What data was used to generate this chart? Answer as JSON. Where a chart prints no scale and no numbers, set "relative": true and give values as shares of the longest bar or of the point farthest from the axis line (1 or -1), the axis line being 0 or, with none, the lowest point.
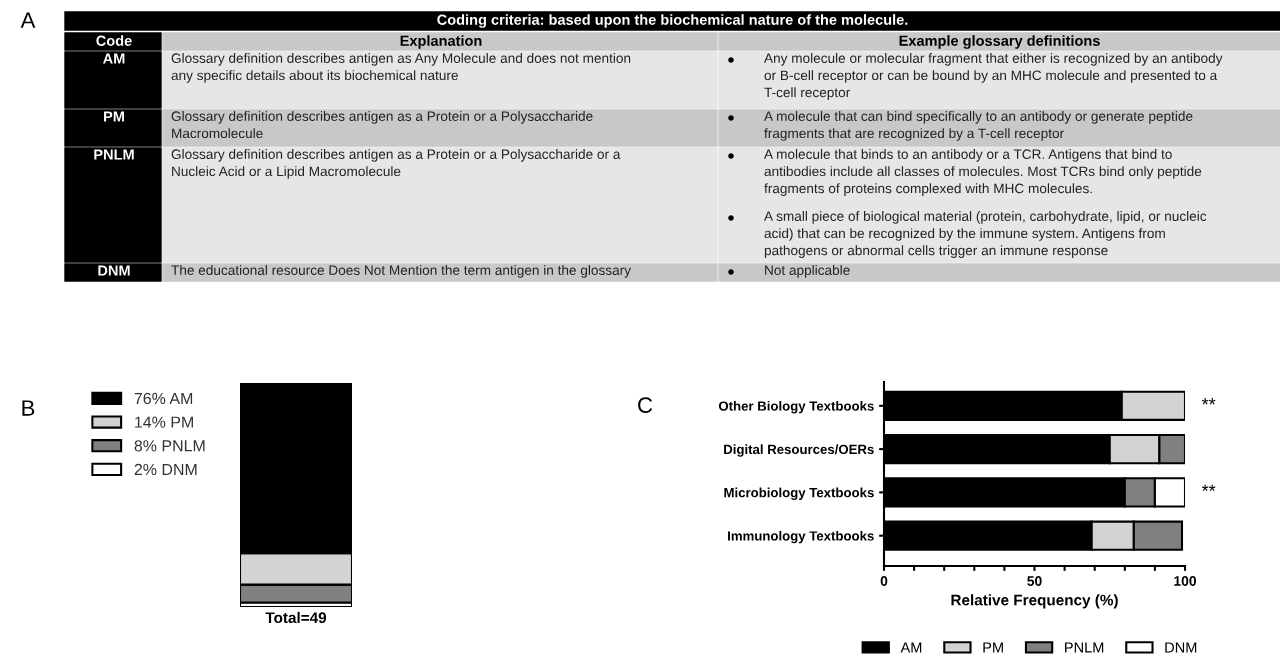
{
  "chart_data": [
    {
      "type": "other",
      "title": "Coding criteria: based upon the biochemical nature of the molecule.",
      "annotations": [
        "A",
        "Code",
        "Explanation",
        "Example glossary definitions",
        "AM",
        "Glossary definition describes antigen as Any Molecule and does not mention\nany specific details about its biochemical nature",
        "Any molecule or molecular fragment that either is recognized by an antibody\nor B-cell receptor or can be bound by an MHC molecule and presented to a\nT-cell receptor",
        "PM",
        "Glossary definition describes antigen as a Protein or a Polysaccharide\nMacromolecule",
        "A molecule that can bind specifically to an antibody or generate peptide\nfragments that are recognized by a T-cell receptor",
        "PNLM",
        "Glossary definition describes antigen as a Protein or a Polysaccharide or a\nNucleic Acid or a Lipid Macromolecule",
        "A molecule that binds to an antibody or a TCR. Antigens that bind to\nantibodies include all classes of molecules. Most TCRs bind only peptide\nfragments of proteins complexed with MHC molecules.",
        "A small piece of biological material (protein, carbohydrate, lipid, or nucleic\nacid) that can be recognized by the immune system. Antigens from\npathogens or abnormal cells trigger an immune response",
        "DNM",
        "The educational resource Does Not Mention the term antigen in the glossary",
        "Not applicable"
      ]
    },
    {
      "type": "bar",
      "stacked": true,
      "relative": true,
      "categories": [
        "Total=49"
      ],
      "legend": "left",
      "annotations": [
        "B"
      ],
      "series": [
        {
          "name": "2% DNM",
          "color": "#ffffff",
          "values": [
            0.02
          ]
        },
        {
          "name": "8% PNLM",
          "color": "#808080",
          "values": [
            0.08
          ]
        },
        {
          "name": "14% PM",
          "color": "#d3d3d3",
          "values": [
            0.14
          ]
        },
        {
          "name": "76% AM",
          "color": "#000000",
          "values": [
            0.76
          ]
        }
      ]
    },
    {
      "type": "bar",
      "orientation": "horizontal",
      "stacked": true,
      "categories": [
        "Other Biology Textbooks",
        "Digital Resources/OERs",
        "Microbiology Textbooks",
        "Immunology Textbooks"
      ],
      "xlim": [
        0,
        100
      ],
      "xticks": [
        0,
        {
          "value": 10,
          "label": null
        },
        {
          "value": 20,
          "label": null
        },
        {
          "value": 30,
          "label": null
        },
        {
          "value": 40,
          "label": null
        },
        50,
        {
          "value": 60,
          "label": null
        },
        {
          "value": 70,
          "label": null
        },
        {
          "value": 80,
          "label": null
        },
        {
          "value": 90,
          "label": null
        },
        100
      ],
      "xlabel": "Relative Frequency (%)",
      "legend": "bottom",
      "annotations": [
        "C",
        {
          "text": "**",
          "x": 100,
          "y": "Other Biology Textbooks"
        },
        {
          "text": "**",
          "x": 100,
          "y": "Microbiology Textbooks"
        }
      ],
      "series": [
        {
          "name": "AM",
          "color": "#000000",
          "values": [
            79,
            75,
            80,
            69
          ]
        },
        {
          "name": "PM",
          "color": "#d3d3d3",
          "values": [
            21,
            16.5,
            null,
            14
          ]
        },
        {
          "name": "PNLM",
          "color": "#808080",
          "values": [
            null,
            8.5,
            10,
            16
          ]
        },
        {
          "name": "DNM",
          "color": "#ffffff",
          "values": [
            null,
            null,
            10,
            null
          ]
        }
      ]
    }
  ]
}
